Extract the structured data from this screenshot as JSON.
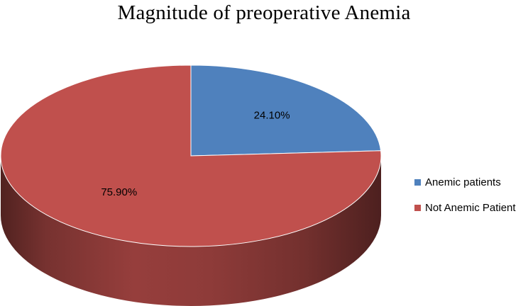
{
  "chart_data": {
    "type": "pie",
    "title": "Magnitude of preoperative Anemia",
    "categories": [
      "Anemic patients",
      "Not Anemic Patient"
    ],
    "values": [
      24.1,
      75.9
    ],
    "data_labels": [
      "24.10%",
      "75.90%"
    ],
    "colors": [
      "#4F81BD",
      "#C0504D"
    ],
    "style": "3d",
    "legend_position": "right"
  }
}
